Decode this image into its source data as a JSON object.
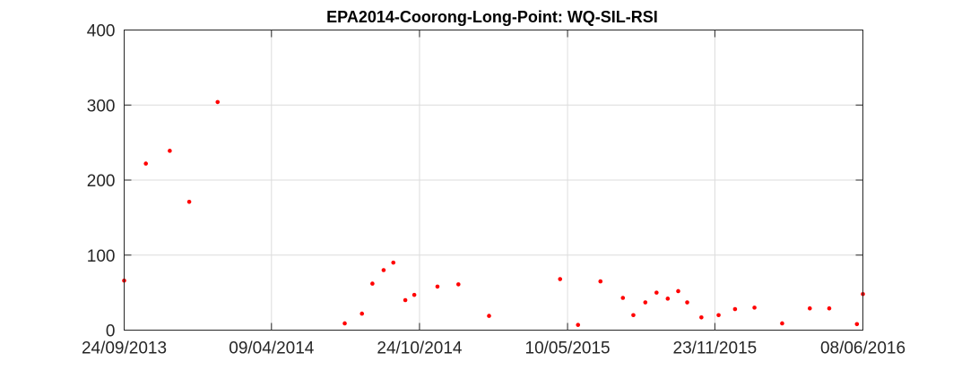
{
  "chart_data": {
    "type": "scatter",
    "title": "EPA2014-Coorong-Long-Point: WQ-SIL-RSI",
    "xlabel": "",
    "ylabel": "",
    "x_axis_type": "date",
    "xlim": [
      "2013-09-24",
      "2016-06-08"
    ],
    "ylim": [
      0,
      400
    ],
    "x_ticks": [
      "2013-09-24",
      "2014-04-09",
      "2014-10-24",
      "2015-05-10",
      "2015-11-23",
      "2016-06-08"
    ],
    "x_tick_labels": [
      "24/09/2013",
      "09/04/2014",
      "24/10/2014",
      "10/05/2015",
      "23/11/2015",
      "08/06/2016"
    ],
    "y_ticks": [
      0,
      100,
      200,
      300,
      400
    ],
    "y_tick_labels": [
      "0",
      "100",
      "200",
      "300",
      "400"
    ],
    "grid": true,
    "marker_color": "#ff0000",
    "series": [
      {
        "points": [
          {
            "x": "2013-09-24",
            "y": 66
          },
          {
            "x": "2013-10-23",
            "y": 222
          },
          {
            "x": "2013-11-24",
            "y": 239
          },
          {
            "x": "2013-12-20",
            "y": 171
          },
          {
            "x": "2014-01-27",
            "y": 304
          },
          {
            "x": "2014-07-16",
            "y": 9
          },
          {
            "x": "2014-08-08",
            "y": 22
          },
          {
            "x": "2014-08-22",
            "y": 62
          },
          {
            "x": "2014-09-06",
            "y": 80
          },
          {
            "x": "2014-09-19",
            "y": 90
          },
          {
            "x": "2014-10-05",
            "y": 40
          },
          {
            "x": "2014-10-17",
            "y": 47
          },
          {
            "x": "2014-11-17",
            "y": 58
          },
          {
            "x": "2014-12-15",
            "y": 61
          },
          {
            "x": "2015-01-25",
            "y": 19
          },
          {
            "x": "2015-04-30",
            "y": 68
          },
          {
            "x": "2015-05-24",
            "y": 7
          },
          {
            "x": "2015-06-23",
            "y": 65
          },
          {
            "x": "2015-07-23",
            "y": 43
          },
          {
            "x": "2015-08-06",
            "y": 20
          },
          {
            "x": "2015-08-22",
            "y": 37
          },
          {
            "x": "2015-09-06",
            "y": 50
          },
          {
            "x": "2015-09-21",
            "y": 42
          },
          {
            "x": "2015-10-05",
            "y": 52
          },
          {
            "x": "2015-10-17",
            "y": 37
          },
          {
            "x": "2015-11-05",
            "y": 17
          },
          {
            "x": "2015-11-28",
            "y": 20
          },
          {
            "x": "2015-12-20",
            "y": 28
          },
          {
            "x": "2016-01-15",
            "y": 30
          },
          {
            "x": "2016-02-21",
            "y": 9
          },
          {
            "x": "2016-03-29",
            "y": 29
          },
          {
            "x": "2016-04-24",
            "y": 29
          },
          {
            "x": "2016-05-31",
            "y": 8
          },
          {
            "x": "2016-06-08",
            "y": 48
          }
        ]
      }
    ]
  }
}
